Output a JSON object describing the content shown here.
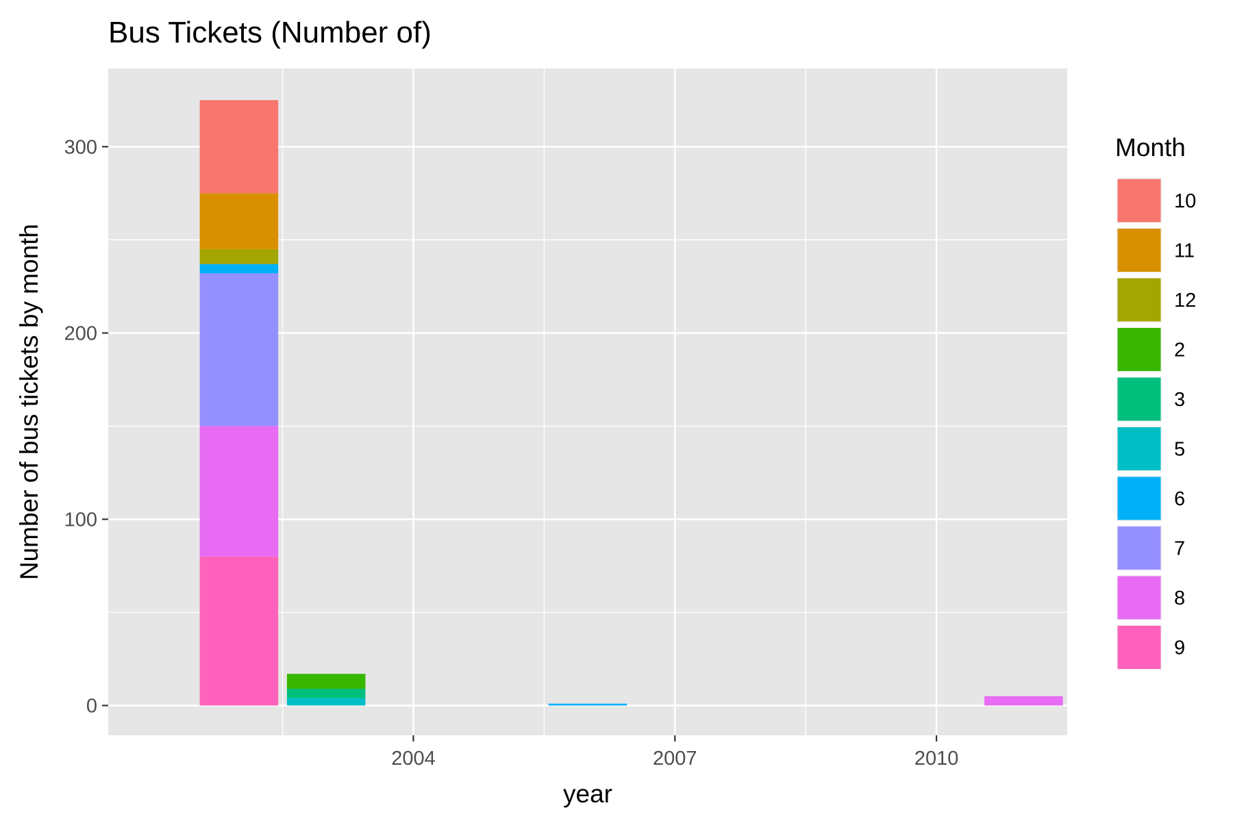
{
  "chart_data": {
    "type": "bar",
    "stacked": true,
    "title": "Bus Tickets (Number of)",
    "xlabel": "year",
    "ylabel": "Number of bus tickets by month",
    "x_tick_values": [
      2004,
      2007,
      2010
    ],
    "x_tick_labels": [
      "2004",
      "2007",
      "2010"
    ],
    "y_tick_values": [
      0,
      100,
      200,
      300
    ],
    "y_tick_labels": [
      "0",
      "100",
      "200",
      "300"
    ],
    "xlim": [
      2000.5,
      2011.5
    ],
    "ylim": [
      -16,
      342
    ],
    "grid": true,
    "legend": {
      "title": "Month",
      "position": "right",
      "entries": [
        {
          "label": "10",
          "color": "#F8766D"
        },
        {
          "label": "11",
          "color": "#D89000"
        },
        {
          "label": "12",
          "color": "#A3A500"
        },
        {
          "label": "2",
          "color": "#39B600"
        },
        {
          "label": "3",
          "color": "#00BF7D"
        },
        {
          "label": "5",
          "color": "#00BFC4"
        },
        {
          "label": "6",
          "color": "#00B0F6"
        },
        {
          "label": "7",
          "color": "#9590FF"
        },
        {
          "label": "8",
          "color": "#E76BF3"
        },
        {
          "label": "9",
          "color": "#FF62BC"
        }
      ]
    },
    "stack_order_bottom_to_top": [
      "9",
      "8",
      "7",
      "6",
      "5",
      "3",
      "2",
      "12",
      "11",
      "10"
    ],
    "bars": [
      {
        "year": 2002,
        "segments": {
          "9": 80,
          "8": 70,
          "7": 82,
          "6": 5,
          "12": 8,
          "11": 30,
          "10": 50
        }
      },
      {
        "year": 2003,
        "segments": {
          "5": 4,
          "3": 5,
          "2": 8
        }
      },
      {
        "year": 2006,
        "segments": {
          "6": 1
        }
      },
      {
        "year": 2011,
        "segments": {
          "8": 5
        }
      }
    ]
  }
}
